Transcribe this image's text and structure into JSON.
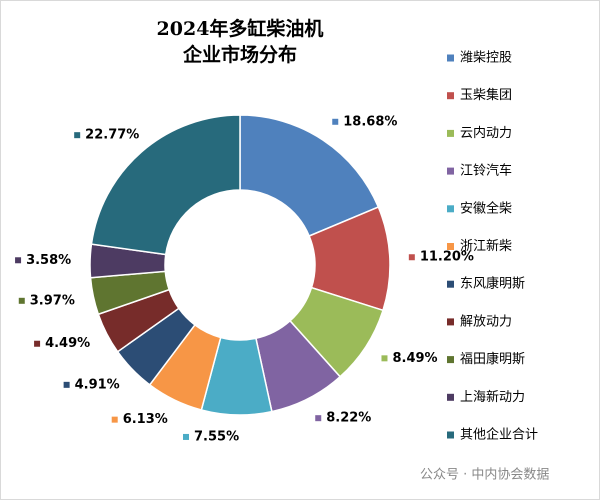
{
  "chart_data": {
    "type": "donut",
    "title_lines": [
      "2024年多缸柴油机",
      "企业市场分布"
    ],
    "categories": [
      "潍柴控股",
      "玉柴集团",
      "云内动力",
      "江铃汽车",
      "安徽全柴",
      "浙江新柴",
      "东风康明斯",
      "解放动力",
      "福田康明斯",
      "上海新动力",
      "其他企业合计"
    ],
    "values": [
      18.68,
      11.2,
      8.49,
      8.22,
      7.55,
      6.13,
      4.91,
      4.49,
      3.97,
      3.58,
      22.77
    ],
    "value_labels": [
      "18.68%",
      "11.20%",
      "8.49%",
      "8.22%",
      "7.55%",
      "6.13%",
      "4.91%",
      "4.49%",
      "3.97%",
      "3.58%",
      "22.77%"
    ],
    "colors": [
      "#4f81bd",
      "#c0504d",
      "#9bbb59",
      "#8064a2",
      "#4bacc6",
      "#f79646",
      "#2c4d75",
      "#772c2a",
      "#5f7530",
      "#4d3b62",
      "#276a7c"
    ],
    "legend": "right",
    "watermark": "公众号 · 中内协会数据"
  }
}
